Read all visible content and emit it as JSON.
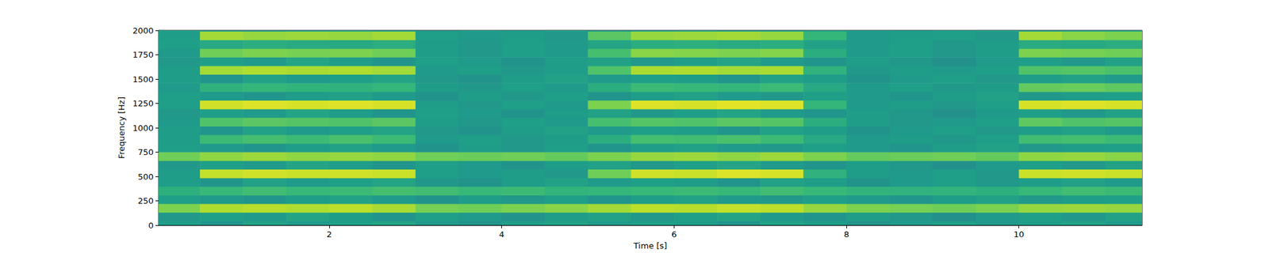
{
  "chart_data": {
    "type": "heatmap",
    "x_label": "Time [s]",
    "y_label": "Frequency [Hz]",
    "xlim": [
      0.02,
      11.43
    ],
    "xticks": [
      2,
      4,
      6,
      8,
      10
    ],
    "ylim": [
      0,
      2000
    ],
    "yticks": [
      0,
      250,
      500,
      750,
      1000,
      1250,
      1500,
      1750,
      2000
    ],
    "color_range": [
      0,
      1
    ],
    "x": [
      0.25,
      0.75,
      1.25,
      1.75,
      2.25,
      2.75,
      3.25,
      3.75,
      4.25,
      4.75,
      5.25,
      5.75,
      6.25,
      6.75,
      7.25,
      7.75,
      8.25,
      8.75,
      9.25,
      9.75,
      10.25,
      10.75,
      11.25
    ],
    "y": [
      0,
      88.5,
      177,
      265.5,
      354,
      442.5,
      531,
      619.5,
      708,
      796.5,
      885,
      973.5,
      1062,
      1150.5,
      1239,
      1327.5,
      1416,
      1504.5,
      1593,
      1681.5,
      1770,
      1858.5,
      1947,
      2035.5
    ],
    "cells": [
      [
        0.55,
        0.52,
        0.57,
        0.54,
        0.56,
        0.58,
        0.53,
        0.51,
        0.55,
        0.57,
        0.54,
        0.56,
        0.55,
        0.52,
        0.57,
        0.55,
        0.51,
        0.54,
        0.56,
        0.53,
        0.55,
        0.57,
        0.54
      ],
      [
        0.53,
        0.56,
        0.54,
        0.58,
        0.55,
        0.52,
        0.56,
        0.54,
        0.51,
        0.55,
        0.57,
        0.53,
        0.56,
        0.58,
        0.54,
        0.52,
        0.55,
        0.53,
        0.5,
        0.54,
        0.56,
        0.53,
        0.57
      ],
      [
        0.8,
        0.88,
        0.89,
        0.88,
        0.9,
        0.87,
        0.79,
        0.78,
        0.8,
        0.82,
        0.86,
        0.9,
        0.89,
        0.91,
        0.9,
        0.84,
        0.8,
        0.79,
        0.78,
        0.8,
        0.84,
        0.85,
        0.84
      ],
      [
        0.56,
        0.54,
        0.52,
        0.55,
        0.57,
        0.54,
        0.51,
        0.55,
        0.53,
        0.56,
        0.52,
        0.55,
        0.57,
        0.54,
        0.53,
        0.56,
        0.54,
        0.52,
        0.55,
        0.57,
        0.53,
        0.55,
        0.56
      ],
      [
        0.63,
        0.67,
        0.69,
        0.67,
        0.68,
        0.7,
        0.69,
        0.67,
        0.68,
        0.65,
        0.66,
        0.67,
        0.68,
        0.67,
        0.69,
        0.67,
        0.65,
        0.64,
        0.65,
        0.63,
        0.67,
        0.69,
        0.68
      ],
      [
        0.55,
        0.52,
        0.57,
        0.54,
        0.56,
        0.58,
        0.53,
        0.51,
        0.55,
        0.57,
        0.54,
        0.56,
        0.55,
        0.52,
        0.57,
        0.55,
        0.51,
        0.54,
        0.56,
        0.53,
        0.55,
        0.57,
        0.54
      ],
      [
        0.55,
        0.91,
        0.93,
        0.92,
        0.93,
        0.92,
        0.56,
        0.54,
        0.55,
        0.53,
        0.78,
        0.93,
        0.92,
        0.95,
        0.94,
        0.64,
        0.55,
        0.54,
        0.56,
        0.53,
        0.92,
        0.93,
        0.92
      ],
      [
        0.53,
        0.56,
        0.54,
        0.58,
        0.55,
        0.52,
        0.56,
        0.54,
        0.51,
        0.55,
        0.57,
        0.53,
        0.56,
        0.58,
        0.54,
        0.52,
        0.55,
        0.53,
        0.5,
        0.54,
        0.56,
        0.53,
        0.57
      ],
      [
        0.78,
        0.83,
        0.85,
        0.83,
        0.84,
        0.83,
        0.78,
        0.77,
        0.78,
        0.76,
        0.8,
        0.84,
        0.85,
        0.83,
        0.85,
        0.8,
        0.76,
        0.77,
        0.78,
        0.76,
        0.83,
        0.84,
        0.82
      ],
      [
        0.56,
        0.54,
        0.52,
        0.55,
        0.57,
        0.54,
        0.51,
        0.55,
        0.53,
        0.56,
        0.52,
        0.55,
        0.57,
        0.54,
        0.53,
        0.56,
        0.54,
        0.52,
        0.55,
        0.57,
        0.53,
        0.55,
        0.56
      ],
      [
        0.55,
        0.68,
        0.7,
        0.68,
        0.71,
        0.68,
        0.54,
        0.56,
        0.53,
        0.55,
        0.62,
        0.7,
        0.69,
        0.71,
        0.68,
        0.6,
        0.54,
        0.55,
        0.53,
        0.56,
        0.69,
        0.7,
        0.68
      ],
      [
        0.55,
        0.52,
        0.57,
        0.54,
        0.56,
        0.58,
        0.53,
        0.51,
        0.55,
        0.57,
        0.54,
        0.56,
        0.55,
        0.52,
        0.57,
        0.55,
        0.51,
        0.54,
        0.56,
        0.53,
        0.55,
        0.57,
        0.54
      ],
      [
        0.54,
        0.72,
        0.74,
        0.73,
        0.72,
        0.74,
        0.55,
        0.53,
        0.56,
        0.54,
        0.7,
        0.73,
        0.72,
        0.74,
        0.73,
        0.62,
        0.55,
        0.53,
        0.54,
        0.56,
        0.75,
        0.72,
        0.73
      ],
      [
        0.53,
        0.56,
        0.54,
        0.58,
        0.55,
        0.52,
        0.56,
        0.54,
        0.51,
        0.55,
        0.57,
        0.53,
        0.56,
        0.58,
        0.54,
        0.52,
        0.55,
        0.53,
        0.5,
        0.54,
        0.56,
        0.53,
        0.57
      ],
      [
        0.56,
        0.93,
        0.95,
        0.94,
        0.95,
        0.94,
        0.55,
        0.53,
        0.56,
        0.54,
        0.8,
        0.95,
        0.94,
        0.96,
        0.95,
        0.66,
        0.54,
        0.55,
        0.53,
        0.56,
        0.94,
        0.95,
        0.94
      ],
      [
        0.56,
        0.54,
        0.52,
        0.55,
        0.57,
        0.54,
        0.51,
        0.55,
        0.53,
        0.56,
        0.52,
        0.55,
        0.57,
        0.54,
        0.53,
        0.56,
        0.54,
        0.52,
        0.55,
        0.57,
        0.53,
        0.55,
        0.56
      ],
      [
        0.54,
        0.64,
        0.66,
        0.65,
        0.64,
        0.66,
        0.55,
        0.53,
        0.56,
        0.54,
        0.62,
        0.68,
        0.67,
        0.66,
        0.68,
        0.6,
        0.54,
        0.56,
        0.53,
        0.55,
        0.76,
        0.77,
        0.75
      ],
      [
        0.55,
        0.52,
        0.57,
        0.54,
        0.56,
        0.58,
        0.53,
        0.51,
        0.55,
        0.57,
        0.54,
        0.56,
        0.55,
        0.52,
        0.57,
        0.55,
        0.51,
        0.54,
        0.56,
        0.53,
        0.55,
        0.57,
        0.54
      ],
      [
        0.55,
        0.86,
        0.88,
        0.87,
        0.88,
        0.86,
        0.54,
        0.56,
        0.53,
        0.55,
        0.72,
        0.87,
        0.88,
        0.86,
        0.87,
        0.64,
        0.53,
        0.55,
        0.54,
        0.56,
        0.72,
        0.73,
        0.71
      ],
      [
        0.53,
        0.56,
        0.54,
        0.58,
        0.55,
        0.52,
        0.56,
        0.54,
        0.51,
        0.55,
        0.57,
        0.53,
        0.56,
        0.58,
        0.54,
        0.52,
        0.55,
        0.53,
        0.5,
        0.54,
        0.56,
        0.53,
        0.57
      ],
      [
        0.54,
        0.78,
        0.8,
        0.79,
        0.8,
        0.78,
        0.55,
        0.53,
        0.56,
        0.54,
        0.7,
        0.82,
        0.81,
        0.8,
        0.81,
        0.62,
        0.54,
        0.56,
        0.53,
        0.55,
        0.8,
        0.79,
        0.78
      ],
      [
        0.56,
        0.6,
        0.62,
        0.61,
        0.6,
        0.62,
        0.55,
        0.53,
        0.56,
        0.54,
        0.58,
        0.62,
        0.63,
        0.61,
        0.62,
        0.57,
        0.54,
        0.56,
        0.53,
        0.55,
        0.61,
        0.6,
        0.62
      ],
      [
        0.55,
        0.86,
        0.84,
        0.85,
        0.84,
        0.86,
        0.56,
        0.54,
        0.55,
        0.53,
        0.74,
        0.84,
        0.85,
        0.86,
        0.84,
        0.66,
        0.54,
        0.55,
        0.56,
        0.53,
        0.86,
        0.82,
        0.8
      ],
      [
        0.56,
        0.54,
        0.52,
        0.55,
        0.57,
        0.54,
        0.51,
        0.55,
        0.53,
        0.56,
        0.52,
        0.55,
        0.57,
        0.54,
        0.53,
        0.56,
        0.54,
        0.52,
        0.55,
        0.57,
        0.53,
        0.55,
        0.56
      ]
    ]
  }
}
